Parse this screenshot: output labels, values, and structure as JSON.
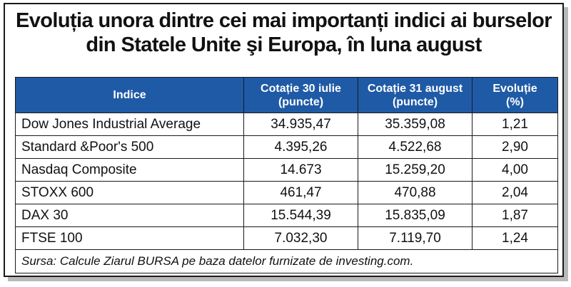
{
  "title": {
    "line1": "Evoluția unora dintre cei mai importanți indici ai burselor",
    "line2": "din Statele Unite şi Europa, în luna august"
  },
  "table": {
    "headers": {
      "index": "Indice",
      "jul30_a": "Cotație 30 iulie",
      "jul30_b": "(puncte)",
      "aug31_a": "Cotație 31 august",
      "aug31_b": "(puncte)",
      "evol_a": "Evoluție",
      "evol_b": "(%)"
    },
    "rows": [
      {
        "name": "Dow Jones Industrial Average",
        "jul30": "34.935,47",
        "aug31": "35.359,08",
        "evol": "1,21"
      },
      {
        "name": "Standard &Poor's 500",
        "jul30": "4.395,26",
        "aug31": "4.522,68",
        "evol": "2,90"
      },
      {
        "name": "Nasdaq Composite",
        "jul30": "14.673",
        "aug31": "15.259,20",
        "evol": "4,00"
      },
      {
        "name": "STOXX 600",
        "jul30": "461,47",
        "aug31": "470,88",
        "evol": "2,04"
      },
      {
        "name": "DAX 30",
        "jul30": "15.544,39",
        "aug31": "15.835,09",
        "evol": "1,87"
      },
      {
        "name": "FTSE 100",
        "jul30": "7.032,30",
        "aug31": "7.119,70",
        "evol": "1,24"
      }
    ],
    "source": "Sursa: Calcule Ziarul BURSA pe baza datelor furnizate de investing.com."
  },
  "colors": {
    "header_bg": "#1f5aa6",
    "header_text": "#ffffff",
    "border": "#1a1a1a",
    "shadow": "#b9b9b9"
  }
}
